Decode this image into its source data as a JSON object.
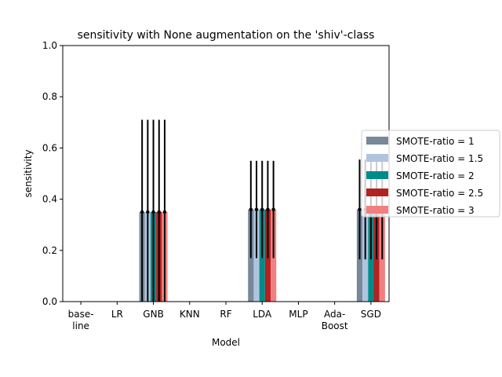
{
  "chart_data": {
    "type": "bar",
    "title": "sensitivity with None augmentation on the 'shiv'-class",
    "xlabel": "Model",
    "ylabel": "sensitivity",
    "ylim": [
      0,
      1.0
    ],
    "yticks": [
      "0.0",
      "0.2",
      "0.4",
      "0.6",
      "0.8",
      "1.0"
    ],
    "categories": [
      [
        "base-",
        "line"
      ],
      [
        "LR"
      ],
      [
        "GNB"
      ],
      [
        "KNN"
      ],
      [
        "RF"
      ],
      [
        "LDA"
      ],
      [
        "MLP"
      ],
      [
        "Ada-",
        "Boost"
      ],
      [
        "SGD"
      ]
    ],
    "grid": false,
    "legend_position": "right, outside plot",
    "series": [
      {
        "name": "SMOTE-ratio = 1",
        "color": "#778899",
        "values": [
          0,
          0,
          0.35,
          0,
          0,
          0.36,
          0,
          0,
          0.36
        ],
        "errors": [
          0,
          0,
          0.36,
          0,
          0,
          0.19,
          0,
          0,
          0.195
        ]
      },
      {
        "name": "SMOTE-ratio = 1.5",
        "color": "#b0c4de",
        "values": [
          0,
          0,
          0.35,
          0,
          0,
          0.36,
          0,
          0,
          0.36
        ],
        "errors": [
          0,
          0,
          0.36,
          0,
          0,
          0.19,
          0,
          0,
          0.195
        ]
      },
      {
        "name": "SMOTE-ratio = 2",
        "color": "#008b8b",
        "values": [
          0,
          0,
          0.35,
          0,
          0,
          0.36,
          0,
          0,
          0.36
        ],
        "errors": [
          0,
          0,
          0.36,
          0,
          0,
          0.19,
          0,
          0,
          0.195
        ]
      },
      {
        "name": "SMOTE-ratio = 2.5",
        "color": "#b22222",
        "values": [
          0,
          0,
          0.35,
          0,
          0,
          0.36,
          0,
          0,
          0.36
        ],
        "errors": [
          0,
          0,
          0.36,
          0,
          0,
          0.19,
          0,
          0,
          0.195
        ]
      },
      {
        "name": "SMOTE-ratio = 3",
        "color": "#f08080",
        "values": [
          0,
          0,
          0.35,
          0,
          0,
          0.36,
          0,
          0,
          0.36
        ],
        "errors": [
          0,
          0,
          0.36,
          0,
          0,
          0.19,
          0,
          0,
          0.195
        ]
      }
    ]
  }
}
